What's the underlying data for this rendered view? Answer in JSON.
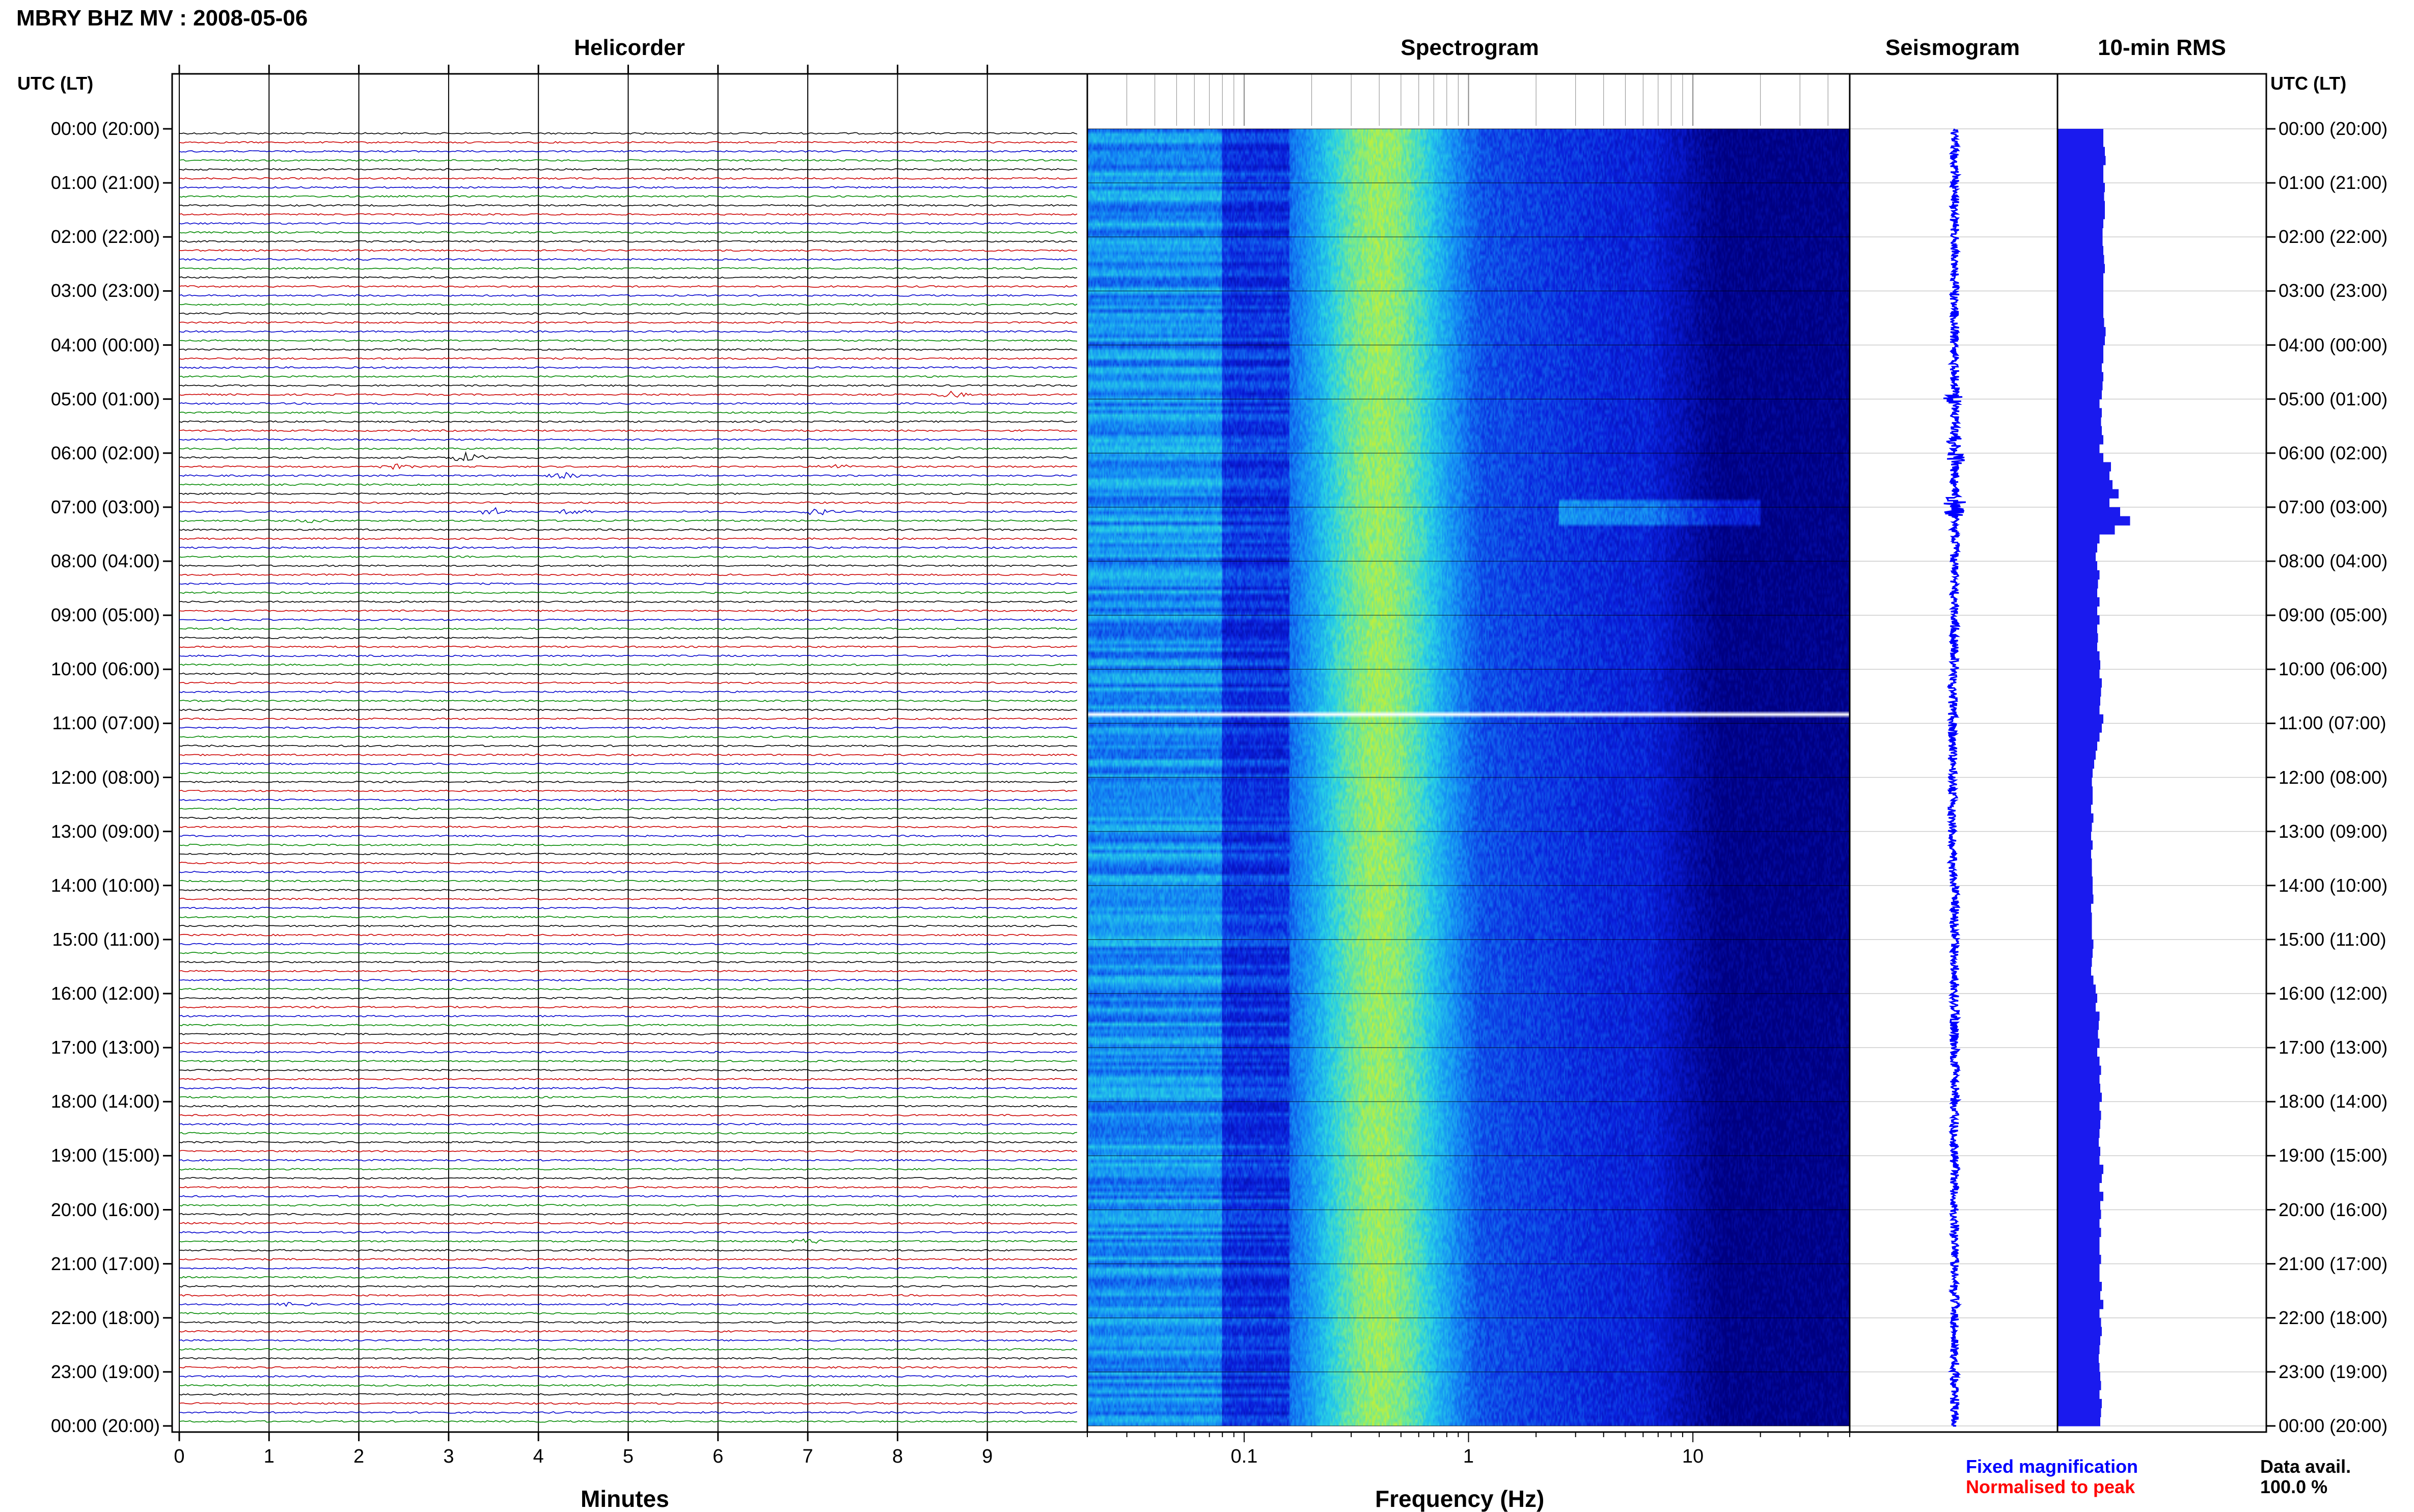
{
  "header": {
    "title": "MBRY BHZ MV : 2008-05-06",
    "left_time_label": "UTC (LT)",
    "right_time_label": "UTC (LT)"
  },
  "panels": {
    "helicorder": "Helicorder",
    "spectrogram": "Spectrogram",
    "seismogram": "Seismogram",
    "rms": "10-min RMS"
  },
  "time_ticks": [
    "00:00 (20:00)",
    "01:00 (21:00)",
    "02:00 (22:00)",
    "03:00 (23:00)",
    "04:00 (00:00)",
    "05:00 (01:00)",
    "06:00 (02:00)",
    "07:00 (03:00)",
    "08:00 (04:00)",
    "09:00 (05:00)",
    "10:00 (06:00)",
    "11:00 (07:00)",
    "12:00 (08:00)",
    "13:00 (09:00)",
    "14:00 (10:00)",
    "15:00 (11:00)",
    "16:00 (12:00)",
    "17:00 (13:00)",
    "18:00 (14:00)",
    "19:00 (15:00)",
    "20:00 (16:00)",
    "21:00 (17:00)",
    "22:00 (18:00)",
    "23:00 (19:00)",
    "00:00 (20:00)"
  ],
  "footer": {
    "minutes_label": "Minutes",
    "frequency_label": "Frequency (Hz)",
    "fixed_magnification": "Fixed magnification",
    "normalised_to_peak": "Normalised to peak",
    "data_avail_label": "Data avail.",
    "data_avail_value": "100.0 %"
  },
  "colors": {
    "trace_cycle": [
      "#000000",
      "#cc0000",
      "#0000cc",
      "#008800"
    ],
    "fixed_magnification": "#0000ff",
    "normalised_to_peak": "#ff0000",
    "rms_bar": "#1a1aee",
    "spectrogram_low": "#000080",
    "spectrogram_high": "#d8f020"
  },
  "chart_data": [
    {
      "type": "line",
      "panel": "Helicorder",
      "xlabel": "Minutes",
      "x_ticks": [
        "0",
        "1",
        "2",
        "3",
        "4",
        "5",
        "6",
        "7",
        "8",
        "9"
      ],
      "xlim": [
        0,
        10
      ],
      "rows_per_hour": 6,
      "row_minutes": 10,
      "hours": 24,
      "events": [
        {
          "row": 29,
          "minute": 8.6,
          "amp": 5
        },
        {
          "row": 36,
          "minute": 3.2,
          "amp": 9
        },
        {
          "row": 37,
          "minute": 2.4,
          "amp": 4
        },
        {
          "row": 37,
          "minute": 7.3,
          "amp": 4
        },
        {
          "row": 38,
          "minute": 4.3,
          "amp": 5
        },
        {
          "row": 42,
          "minute": 3.5,
          "amp": 7
        },
        {
          "row": 42,
          "minute": 4.4,
          "amp": 5
        },
        {
          "row": 42,
          "minute": 7.1,
          "amp": 6
        },
        {
          "row": 43,
          "minute": 1.5,
          "amp": 3
        },
        {
          "row": 123,
          "minute": 7.0,
          "amp": 4
        },
        {
          "row": 130,
          "minute": 1.3,
          "amp": 4
        }
      ]
    },
    {
      "type": "heatmap",
      "panel": "Spectrogram",
      "xlabel": "Frequency (Hz)",
      "x_scale": "log",
      "xlim": [
        0.02,
        50
      ],
      "x_ticks": [
        0.1,
        1,
        10
      ],
      "x_tick_labels": [
        "0.1",
        "1",
        "10"
      ],
      "peak_band_hz": [
        0.3,
        0.5
      ],
      "data_gap_utc_hour": 10.8
    },
    {
      "type": "line",
      "panel": "Seismogram",
      "ylim_utc_hours": [
        0,
        24
      ],
      "bursts_utc_hours": [
        5.0,
        5.8,
        6.1,
        6.9,
        7.1
      ]
    },
    {
      "type": "bar",
      "panel": "10-min RMS",
      "ylim_utc_hours": [
        0,
        24
      ],
      "interval_minutes": 10,
      "relative_rms_profile": [
        0.6,
        0.6,
        0.62,
        0.63,
        0.6,
        0.6,
        0.62,
        0.61,
        0.62,
        0.62,
        0.6,
        0.59,
        0.59,
        0.6,
        0.61,
        0.62,
        0.6,
        0.6,
        0.6,
        0.6,
        0.6,
        0.61,
        0.63,
        0.62,
        0.6,
        0.6,
        0.58,
        0.6,
        0.59,
        0.58,
        0.55,
        0.58,
        0.57,
        0.58,
        0.6,
        0.55,
        0.6,
        0.7,
        0.68,
        0.72,
        0.8,
        0.68,
        0.82,
        0.95,
        0.75,
        0.55,
        0.52,
        0.5,
        0.52,
        0.55,
        0.53,
        0.52,
        0.55,
        0.52,
        0.55,
        0.52,
        0.53,
        0.52,
        0.55,
        0.56,
        0.55,
        0.58,
        0.57,
        0.56,
        0.55,
        0.6,
        0.58,
        0.55,
        0.52,
        0.5,
        0.48,
        0.46,
        0.45,
        0.46,
        0.46,
        0.44,
        0.47,
        0.45,
        0.44,
        0.46,
        0.44,
        0.45,
        0.45,
        0.46,
        0.46,
        0.47,
        0.44,
        0.45,
        0.45,
        0.45,
        0.47,
        0.46,
        0.45,
        0.44,
        0.47,
        0.5,
        0.52,
        0.5,
        0.55,
        0.54,
        0.53,
        0.55,
        0.52,
        0.55,
        0.57,
        0.55,
        0.56,
        0.58,
        0.55,
        0.57,
        0.56,
        0.55,
        0.54,
        0.56,
        0.55,
        0.6,
        0.58,
        0.55,
        0.6,
        0.56,
        0.57,
        0.55,
        0.57,
        0.55,
        0.55,
        0.57,
        0.55,
        0.55,
        0.58,
        0.56,
        0.6,
        0.55,
        0.57,
        0.58,
        0.56,
        0.55,
        0.54,
        0.55,
        0.56,
        0.57,
        0.55,
        0.58,
        0.57,
        0.56
      ]
    }
  ]
}
